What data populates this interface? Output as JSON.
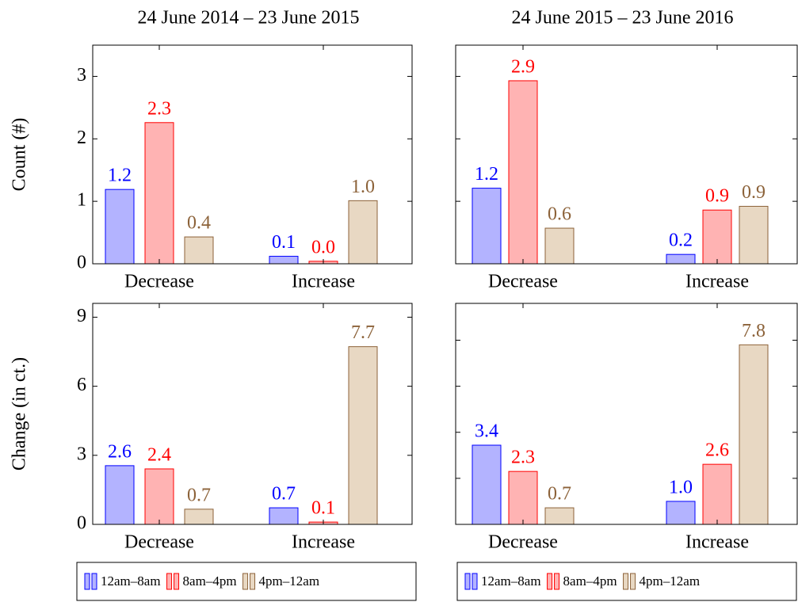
{
  "chart_data": [
    {
      "type": "bar",
      "title": "24 June 2014 – 23 June 2015",
      "ylabel": "Count (#)",
      "categories": [
        "Decrease",
        "Increase"
      ],
      "ylim": [
        0,
        3.5
      ],
      "yticks": [
        0,
        1,
        2,
        3
      ],
      "ytick_labels_shown": true,
      "series": [
        {
          "color": "#b3b3ff",
          "edge_color": "#0000ff",
          "values": [
            1.19,
            0.12
          ],
          "value_labels": [
            "1.2",
            "0.1"
          ]
        },
        {
          "color": "#ffb3b3",
          "edge_color": "#ff0000",
          "values": [
            2.26,
            0.04
          ],
          "value_labels": [
            "2.3",
            "0.0"
          ]
        },
        {
          "color": "#e8d8c3",
          "edge_color": "#8c6239",
          "values": [
            0.43,
            1.01
          ],
          "value_labels": [
            "0.4",
            "1.0"
          ]
        }
      ]
    },
    {
      "type": "bar",
      "title": "24 June 2015 – 23 June 2016",
      "categories": [
        "Decrease",
        "Increase"
      ],
      "ylim": [
        0,
        3.5
      ],
      "yticks": [
        0,
        1,
        2,
        3
      ],
      "ytick_labels_shown": false,
      "series": [
        {
          "color": "#b3b3ff",
          "edge_color": "#0000ff",
          "values": [
            1.21,
            0.15
          ],
          "value_labels": [
            "1.2",
            "0.2"
          ]
        },
        {
          "color": "#ffb3b3",
          "edge_color": "#ff0000",
          "values": [
            2.93,
            0.86
          ],
          "value_labels": [
            "2.9",
            "0.9"
          ]
        },
        {
          "color": "#e8d8c3",
          "edge_color": "#8c6239",
          "values": [
            0.57,
            0.92
          ],
          "value_labels": [
            "0.6",
            "0.9"
          ]
        }
      ]
    },
    {
      "type": "bar",
      "ylabel": "Change (in ct.)",
      "categories": [
        "Decrease",
        "Increase"
      ],
      "ylim": [
        0,
        9.6
      ],
      "yticks": [
        0,
        3,
        6,
        9
      ],
      "ytick_labels_shown": true,
      "legend": "bottom",
      "series": [
        {
          "name": "12am–8am",
          "color": "#b3b3ff",
          "edge_color": "#0000ff",
          "values": [
            2.55,
            0.72
          ],
          "value_labels": [
            "2.6",
            "0.7"
          ]
        },
        {
          "name": "8am–4pm",
          "color": "#ffb3b3",
          "edge_color": "#ff0000",
          "values": [
            2.41,
            0.1
          ],
          "value_labels": [
            "2.4",
            "0.1"
          ]
        },
        {
          "name": "4pm–12am",
          "color": "#e8d8c3",
          "edge_color": "#8c6239",
          "values": [
            0.66,
            7.72
          ],
          "value_labels": [
            "0.7",
            "7.7"
          ]
        }
      ]
    },
    {
      "type": "bar",
      "categories": [
        "Decrease",
        "Increase"
      ],
      "ylim": [
        0,
        9.6
      ],
      "yticks": [
        0,
        2,
        4,
        6,
        8
      ],
      "ytick_labels_shown": false,
      "legend": "bottom",
      "series": [
        {
          "name": "12am–8am",
          "color": "#b3b3ff",
          "edge_color": "#0000ff",
          "values": [
            3.44,
            1.0
          ],
          "value_labels": [
            "3.4",
            "1.0"
          ]
        },
        {
          "name": "8am–4pm",
          "color": "#ffb3b3",
          "edge_color": "#ff0000",
          "values": [
            2.3,
            2.61
          ],
          "value_labels": [
            "2.3",
            "2.6"
          ]
        },
        {
          "name": "4pm–12am",
          "color": "#e8d8c3",
          "edge_color": "#8c6239",
          "values": [
            0.72,
            7.8
          ],
          "value_labels": [
            "0.7",
            "7.8"
          ]
        }
      ]
    }
  ]
}
